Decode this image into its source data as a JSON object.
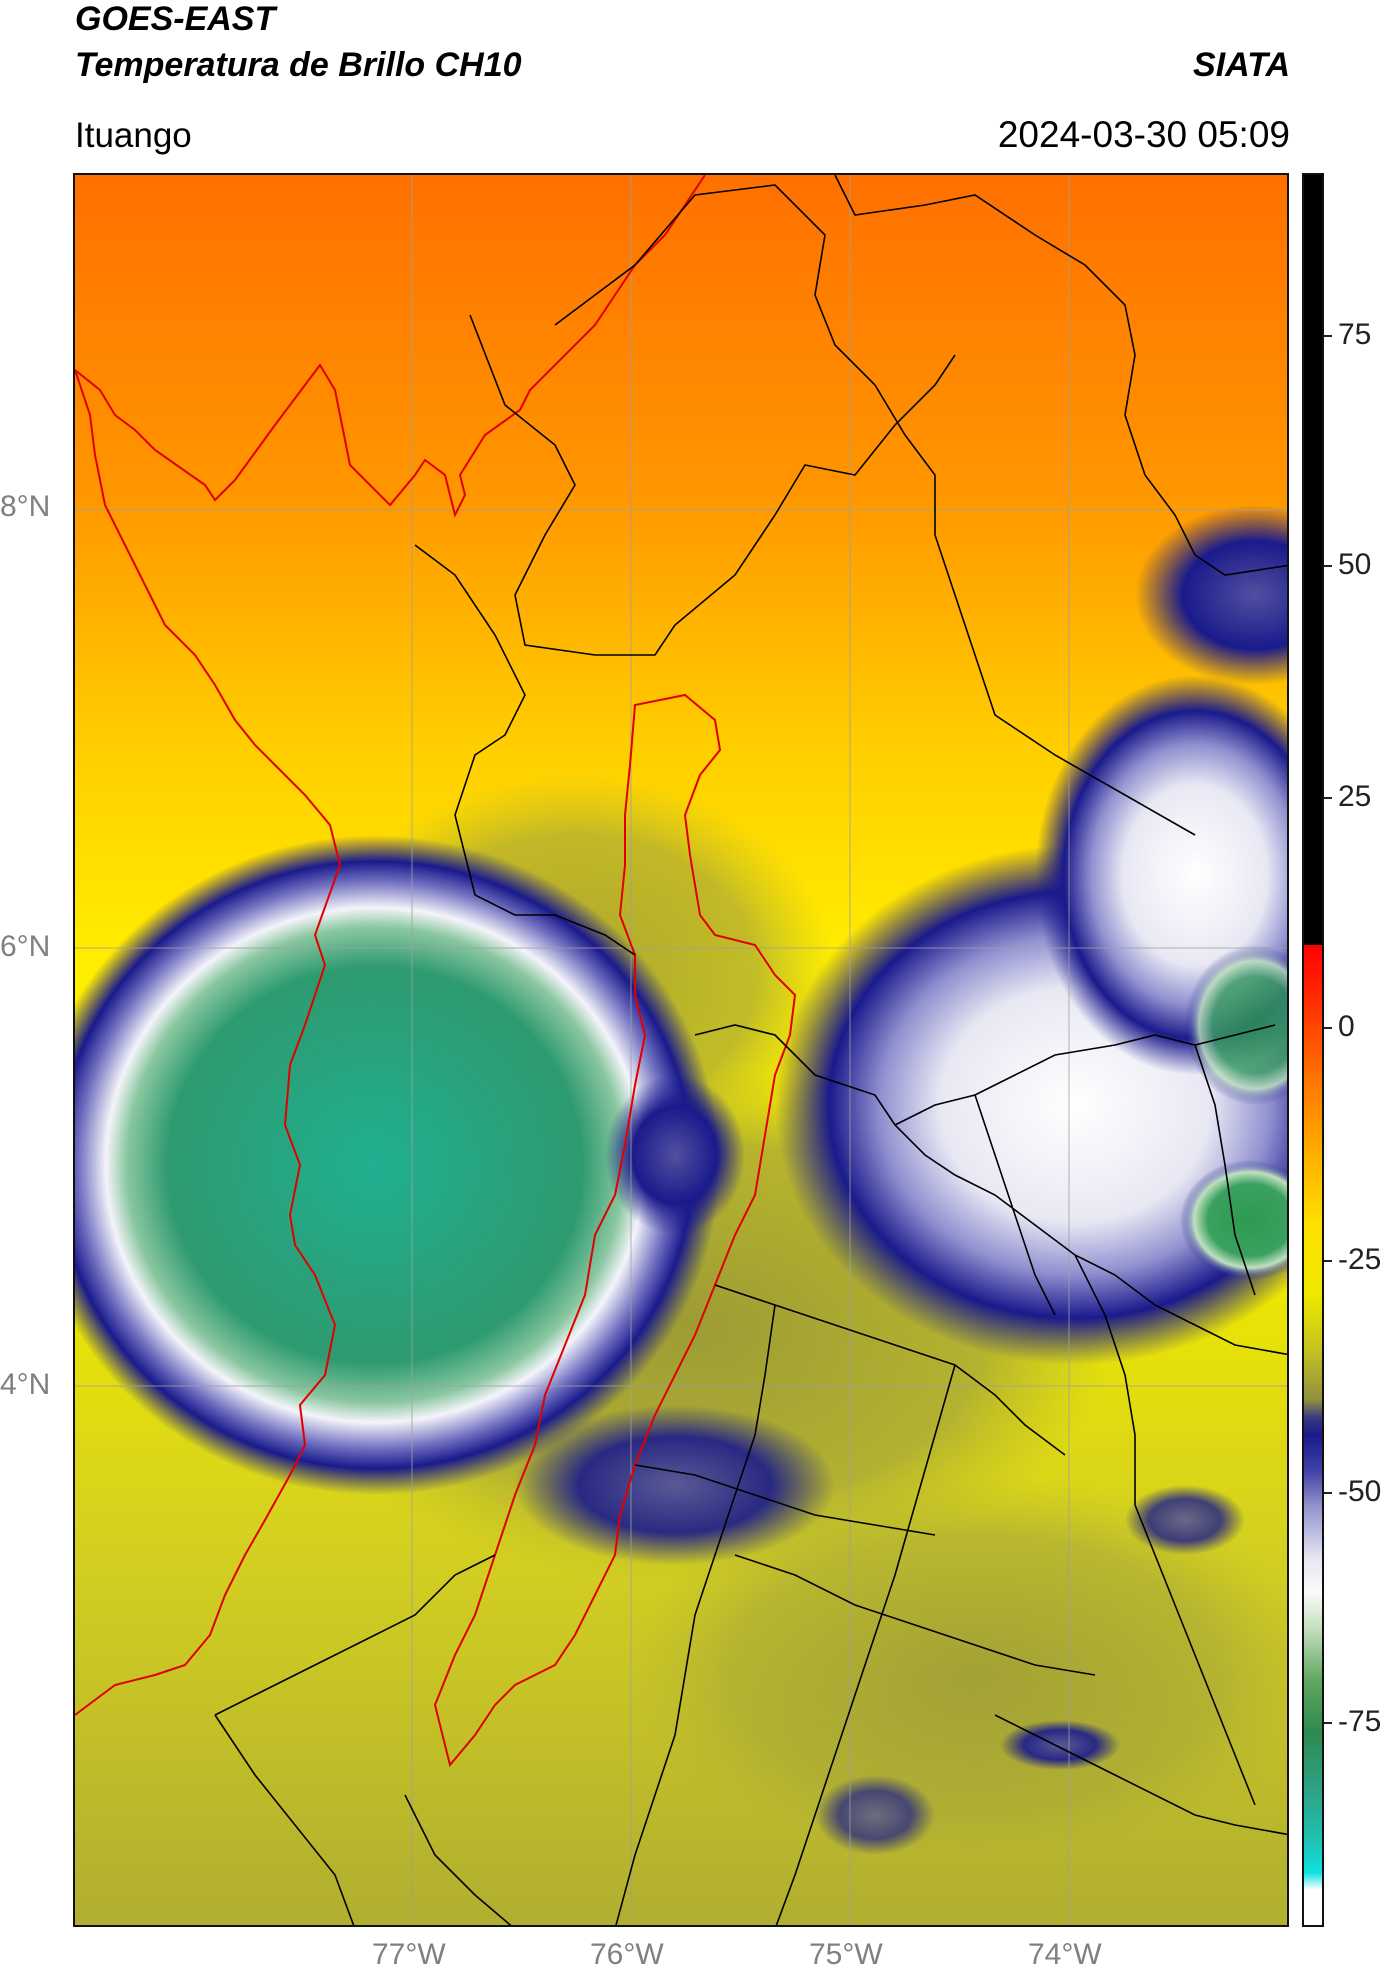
{
  "header": {
    "title_line1": "GOES-EAST",
    "title_line2": "Temperatura de Brillo CH10",
    "organization": "SIATA",
    "place": "Ituango",
    "datetime": "2024-03-30 05:09"
  },
  "map": {
    "lat_ticks": [
      {
        "value": 8,
        "label": "8°N"
      },
      {
        "value": 6,
        "label": "6°N"
      },
      {
        "value": 4,
        "label": "4°N"
      }
    ],
    "lon_ticks": [
      {
        "value": -77,
        "label": "77°W"
      },
      {
        "value": -76,
        "label": "76°W"
      },
      {
        "value": -75,
        "label": "75°W"
      },
      {
        "value": -74,
        "label": "74°W"
      }
    ],
    "colors": {
      "land_orange": "#ff7a00",
      "land_yellow": "#ffe600",
      "olive": "#b8b830",
      "cloud_blue": "#1a1a8c",
      "cloud_white": "#f2f2f8",
      "cloud_green": "#2e9a70",
      "coast_red": "#e00000",
      "border_black": "#000000",
      "grid": "#a0a0a0"
    }
  },
  "colorbar": {
    "ticks": [
      {
        "value": 75,
        "label": "75"
      },
      {
        "value": 50,
        "label": "50"
      },
      {
        "value": 25,
        "label": "25"
      },
      {
        "value": 0,
        "label": "0"
      },
      {
        "value": -25,
        "label": "-25"
      },
      {
        "value": -50,
        "label": "-50"
      },
      {
        "value": -75,
        "label": "-75"
      }
    ],
    "range": [
      -95,
      90
    ]
  }
}
